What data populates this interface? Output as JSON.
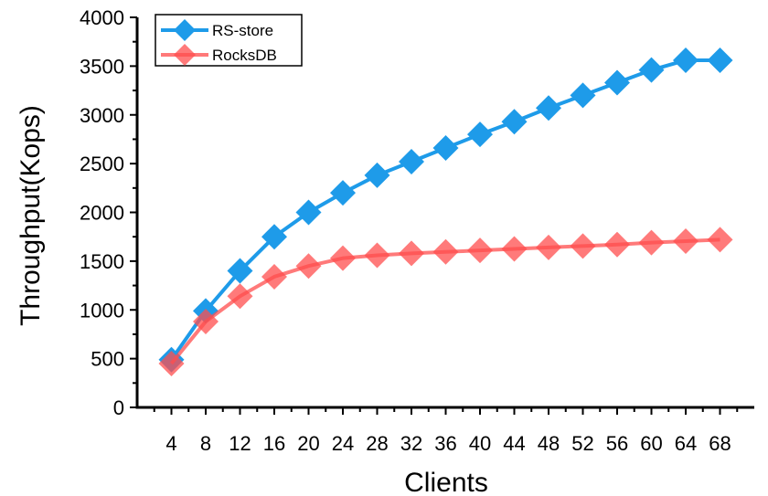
{
  "chart_data": {
    "type": "line",
    "xlabel": "Clients",
    "ylabel": "Throughput(Kops)",
    "x": [
      4,
      8,
      12,
      16,
      20,
      24,
      28,
      32,
      36,
      40,
      44,
      48,
      52,
      56,
      60,
      64,
      68
    ],
    "xlim": [
      0,
      72
    ],
    "ylim": [
      0,
      4000
    ],
    "yticks": [
      0,
      500,
      1000,
      1500,
      2000,
      2500,
      3000,
      3500,
      4000
    ],
    "legend_position": "top-left",
    "grid": false,
    "series": [
      {
        "name": "RS-store",
        "color": "#1E9BE9",
        "marker": "diamond",
        "values": [
          490,
          990,
          1400,
          1750,
          2000,
          2200,
          2380,
          2520,
          2660,
          2800,
          2930,
          3070,
          3200,
          3330,
          3460,
          3560,
          3560
        ]
      },
      {
        "name": "RocksDB",
        "color": "#FF4D4D",
        "marker": "diamond",
        "values": [
          450,
          880,
          1140,
          1340,
          1450,
          1530,
          1560,
          1580,
          1595,
          1610,
          1625,
          1640,
          1655,
          1670,
          1690,
          1705,
          1720
        ]
      }
    ]
  }
}
